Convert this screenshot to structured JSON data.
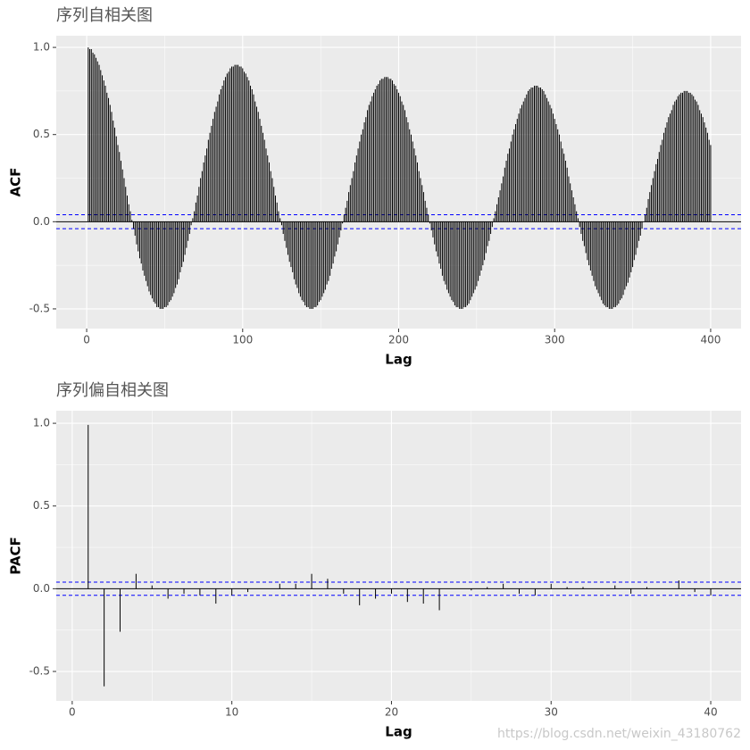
{
  "chart_data": [
    {
      "type": "bar",
      "title": "序列自相关图",
      "xlabel": "Lag",
      "ylabel": "ACF",
      "color": "#000000",
      "ci": [
        -0.04,
        0.04
      ],
      "ci_color": "#0000FF",
      "grid": true,
      "xlim": [
        -19.5,
        419.5
      ],
      "xticks": [
        0,
        100,
        200,
        300,
        400
      ],
      "ylim": [
        -0.613,
        1.067
      ],
      "yticks": [
        {
          "value": -0.5,
          "label": "-0.5"
        },
        {
          "value": 0,
          "label": "0.0"
        },
        {
          "value": 0.5,
          "label": "0.5"
        },
        {
          "value": 1,
          "label": "1.0"
        }
      ],
      "x": [
        1,
        2,
        3,
        4,
        5,
        6,
        7,
        8,
        9,
        10,
        11,
        12,
        13,
        14,
        15,
        16,
        17,
        18,
        19,
        20,
        21,
        22,
        23,
        24,
        25,
        26,
        27,
        28,
        29,
        30,
        31,
        32,
        33,
        34,
        35,
        36,
        37,
        38,
        39,
        40,
        41,
        42,
        43,
        44,
        45,
        46,
        47,
        48,
        49,
        50,
        51,
        52,
        53,
        54,
        55,
        56,
        57,
        58,
        59,
        60,
        61,
        62,
        63,
        64,
        65,
        66,
        67,
        68,
        69,
        70,
        71,
        72,
        73,
        74,
        75,
        76,
        77,
        78,
        79,
        80,
        81,
        82,
        83,
        84,
        85,
        86,
        87,
        88,
        89,
        90,
        91,
        92,
        93,
        94,
        95,
        96,
        97,
        98,
        99,
        100,
        101,
        102,
        103,
        104,
        105,
        106,
        107,
        108,
        109,
        110,
        111,
        112,
        113,
        114,
        115,
        116,
        117,
        118,
        119,
        120,
        121,
        122,
        123,
        124,
        125,
        126,
        127,
        128,
        129,
        130,
        131,
        132,
        133,
        134,
        135,
        136,
        137,
        138,
        139,
        140,
        141,
        142,
        143,
        144,
        145,
        146,
        147,
        148,
        149,
        150,
        151,
        152,
        153,
        154,
        155,
        156,
        157,
        158,
        159,
        160,
        161,
        162,
        163,
        164,
        165,
        166,
        167,
        168,
        169,
        170,
        171,
        172,
        173,
        174,
        175,
        176,
        177,
        178,
        179,
        180,
        181,
        182,
        183,
        184,
        185,
        186,
        187,
        188,
        189,
        190,
        191,
        192,
        193,
        194,
        195,
        196,
        197,
        198,
        199,
        200,
        201,
        202,
        203,
        204,
        205,
        206,
        207,
        208,
        209,
        210,
        211,
        212,
        213,
        214,
        215,
        216,
        217,
        218,
        219,
        220,
        221,
        222,
        223,
        224,
        225,
        226,
        227,
        228,
        229,
        230,
        231,
        232,
        233,
        234,
        235,
        236,
        237,
        238,
        239,
        240,
        241,
        242,
        243,
        244,
        245,
        246,
        247,
        248,
        249,
        250,
        251,
        252,
        253,
        254,
        255,
        256,
        257,
        258,
        259,
        260,
        261,
        262,
        263,
        264,
        265,
        266,
        267,
        268,
        269,
        270,
        271,
        272,
        273,
        274,
        275,
        276,
        277,
        278,
        279,
        280,
        281,
        282,
        283,
        284,
        285,
        286,
        287,
        288,
        289,
        290,
        291,
        292,
        293,
        294,
        295,
        296,
        297,
        298,
        299,
        300,
        301,
        302,
        303,
        304,
        305,
        306,
        307,
        308,
        309,
        310,
        311,
        312,
        313,
        314,
        315,
        316,
        317,
        318,
        319,
        320,
        321,
        322,
        323,
        324,
        325,
        326,
        327,
        328,
        329,
        330,
        331,
        332,
        333,
        334,
        335,
        336,
        337,
        338,
        339,
        340,
        341,
        342,
        343,
        344,
        345,
        346,
        347,
        348,
        349,
        350,
        351,
        352,
        353,
        354,
        355,
        356,
        357,
        358,
        359,
        360,
        361,
        362,
        363,
        364,
        365,
        366,
        367,
        368,
        369,
        370,
        371,
        372,
        373,
        374,
        375,
        376,
        377,
        378,
        379,
        380,
        381,
        382,
        383,
        384,
        385,
        386,
        387,
        388,
        389,
        390,
        391,
        392,
        393,
        394,
        395,
        396,
        397,
        398,
        399,
        400
      ],
      "values": [
        1.0,
        0.99,
        0.99,
        0.97,
        0.96,
        0.94,
        0.92,
        0.9,
        0.87,
        0.84,
        0.81,
        0.78,
        0.74,
        0.71,
        0.67,
        0.63,
        0.58,
        0.54,
        0.49,
        0.44,
        0.4,
        0.35,
        0.3,
        0.25,
        0.2,
        0.15,
        0.1,
        0.06,
        0.01,
        -0.04,
        -0.08,
        -0.13,
        -0.17,
        -0.21,
        -0.24,
        -0.28,
        -0.31,
        -0.34,
        -0.37,
        -0.4,
        -0.42,
        -0.44,
        -0.46,
        -0.47,
        -0.49,
        -0.49,
        -0.5,
        -0.5,
        -0.5,
        -0.49,
        -0.49,
        -0.48,
        -0.46,
        -0.45,
        -0.43,
        -0.41,
        -0.38,
        -0.36,
        -0.33,
        -0.29,
        -0.26,
        -0.23,
        -0.19,
        -0.15,
        -0.11,
        -0.07,
        -0.02,
        0.02,
        0.06,
        0.11,
        0.15,
        0.2,
        0.25,
        0.29,
        0.34,
        0.38,
        0.42,
        0.47,
        0.51,
        0.55,
        0.59,
        0.63,
        0.66,
        0.69,
        0.73,
        0.76,
        0.78,
        0.81,
        0.83,
        0.85,
        0.86,
        0.88,
        0.89,
        0.89,
        0.9,
        0.9,
        0.9,
        0.89,
        0.89,
        0.88,
        0.86,
        0.85,
        0.83,
        0.81,
        0.78,
        0.76,
        0.73,
        0.69,
        0.66,
        0.63,
        0.59,
        0.55,
        0.51,
        0.47,
        0.42,
        0.38,
        0.34,
        0.29,
        0.25,
        0.2,
        0.15,
        0.11,
        0.06,
        0.02,
        -0.02,
        -0.07,
        -0.11,
        -0.15,
        -0.19,
        -0.23,
        -0.26,
        -0.29,
        -0.33,
        -0.36,
        -0.38,
        -0.41,
        -0.43,
        -0.45,
        -0.46,
        -0.48,
        -0.49,
        -0.49,
        -0.5,
        -0.5,
        -0.5,
        -0.49,
        -0.49,
        -0.48,
        -0.46,
        -0.45,
        -0.43,
        -0.41,
        -0.39,
        -0.36,
        -0.34,
        -0.31,
        -0.27,
        -0.24,
        -0.2,
        -0.17,
        -0.13,
        -0.09,
        -0.05,
        -0.01,
        0.04,
        0.08,
        0.12,
        0.17,
        0.21,
        0.25,
        0.29,
        0.34,
        0.38,
        0.42,
        0.46,
        0.5,
        0.53,
        0.57,
        0.6,
        0.64,
        0.67,
        0.69,
        0.72,
        0.74,
        0.76,
        0.78,
        0.79,
        0.81,
        0.82,
        0.82,
        0.83,
        0.83,
        0.83,
        0.82,
        0.82,
        0.81,
        0.79,
        0.78,
        0.76,
        0.74,
        0.72,
        0.69,
        0.67,
        0.64,
        0.6,
        0.57,
        0.53,
        0.5,
        0.46,
        0.42,
        0.38,
        0.34,
        0.29,
        0.25,
        0.21,
        0.17,
        0.12,
        0.08,
        0.04,
        -0.01,
        -0.05,
        -0.09,
        -0.13,
        -0.17,
        -0.2,
        -0.24,
        -0.27,
        -0.31,
        -0.34,
        -0.36,
        -0.39,
        -0.41,
        -0.43,
        -0.45,
        -0.46,
        -0.48,
        -0.49,
        -0.49,
        -0.5,
        -0.5,
        -0.5,
        -0.49,
        -0.49,
        -0.48,
        -0.47,
        -0.45,
        -0.43,
        -0.41,
        -0.39,
        -0.37,
        -0.34,
        -0.31,
        -0.28,
        -0.25,
        -0.22,
        -0.18,
        -0.14,
        -0.11,
        -0.07,
        -0.03,
        0.02,
        0.06,
        0.1,
        0.14,
        0.18,
        0.22,
        0.26,
        0.31,
        0.35,
        0.39,
        0.42,
        0.46,
        0.5,
        0.53,
        0.56,
        0.59,
        0.62,
        0.65,
        0.67,
        0.69,
        0.71,
        0.73,
        0.75,
        0.76,
        0.77,
        0.77,
        0.78,
        0.78,
        0.78,
        0.77,
        0.77,
        0.76,
        0.75,
        0.73,
        0.71,
        0.69,
        0.67,
        0.65,
        0.62,
        0.59,
        0.56,
        0.53,
        0.5,
        0.46,
        0.42,
        0.39,
        0.35,
        0.31,
        0.26,
        0.22,
        0.18,
        0.14,
        0.1,
        0.06,
        0.02,
        -0.03,
        -0.07,
        -0.11,
        -0.14,
        -0.18,
        -0.22,
        -0.25,
        -0.28,
        -0.31,
        -0.34,
        -0.37,
        -0.39,
        -0.41,
        -0.43,
        -0.45,
        -0.47,
        -0.48,
        -0.49,
        -0.49,
        -0.5,
        -0.5,
        -0.5,
        -0.49,
        -0.49,
        -0.48,
        -0.47,
        -0.45,
        -0.44,
        -0.42,
        -0.39,
        -0.37,
        -0.35,
        -0.32,
        -0.29,
        -0.26,
        -0.22,
        -0.19,
        -0.15,
        -0.11,
        -0.08,
        -0.04,
        0.0,
        0.04,
        0.08,
        0.13,
        0.17,
        0.21,
        0.25,
        0.29,
        0.33,
        0.36,
        0.4,
        0.44,
        0.47,
        0.51,
        0.54,
        0.57,
        0.6,
        0.62,
        0.64,
        0.67,
        0.69,
        0.7,
        0.72,
        0.73,
        0.74,
        0.74,
        0.75,
        0.75,
        0.75,
        0.74,
        0.74,
        0.73,
        0.72,
        0.7,
        0.69,
        0.67,
        0.64,
        0.62,
        0.6,
        0.57,
        0.54,
        0.51,
        0.47,
        0.44
      ]
    },
    {
      "type": "bar",
      "title": "序列偏自相关图",
      "xlabel": "Lag",
      "ylabel": "PACF",
      "color": "#000000",
      "ci": [
        -0.04,
        0.04
      ],
      "ci_color": "#0000FF",
      "grid": true,
      "xlim": [
        -1,
        41.9
      ],
      "xticks": [
        0,
        10,
        20,
        30,
        40
      ],
      "ylim": [
        -0.678,
        1.076
      ],
      "yticks": [
        {
          "value": -0.5,
          "label": "-0.5"
        },
        {
          "value": 0,
          "label": "0.0"
        },
        {
          "value": 0.5,
          "label": "0.5"
        },
        {
          "value": 1,
          "label": "1.0"
        }
      ],
      "x": [
        1,
        2,
        3,
        4,
        5,
        6,
        7,
        8,
        9,
        10,
        11,
        12,
        13,
        14,
        15,
        16,
        17,
        18,
        19,
        20,
        21,
        22,
        23,
        24,
        25,
        26,
        27,
        28,
        29,
        30,
        31,
        32,
        33,
        34,
        35,
        36,
        37,
        38,
        39,
        40
      ],
      "values": [
        0.99,
        -0.59,
        -0.26,
        0.09,
        0.02,
        -0.06,
        -0.03,
        -0.04,
        -0.09,
        -0.04,
        -0.02,
        0.0,
        0.03,
        0.03,
        0.09,
        0.06,
        -0.03,
        -0.1,
        -0.06,
        -0.03,
        -0.08,
        -0.09,
        -0.13,
        0.0,
        -0.01,
        0.01,
        0.03,
        -0.03,
        -0.04,
        0.03,
        0.01,
        0.01,
        0.0,
        0.02,
        -0.03,
        0.01,
        0.0,
        0.05,
        -0.02,
        -0.04
      ]
    }
  ],
  "watermark": "https://blog.csdn.net/weixin_43180762"
}
